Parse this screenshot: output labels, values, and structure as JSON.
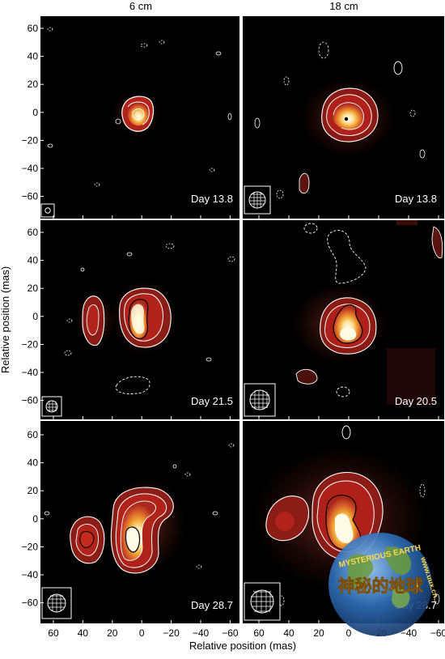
{
  "columns": [
    "6 cm",
    "18 cm"
  ],
  "y_axis_label": "Relative position (mas)",
  "x_axis_label": "Relative position (mas)",
  "y_ticks": [
    "60",
    "40",
    "20",
    "0",
    "−20",
    "−40",
    "−60"
  ],
  "x_ticks": [
    "60",
    "40",
    "20",
    "0",
    "−20",
    "−40",
    "−60"
  ],
  "panels": [
    {
      "row": 0,
      "col": 0,
      "day": "Day 13.8"
    },
    {
      "row": 0,
      "col": 1,
      "day": "Day 13.8"
    },
    {
      "row": 1,
      "col": 0,
      "day": "Day 21.5"
    },
    {
      "row": 1,
      "col": 1,
      "day": "Day 20.5"
    },
    {
      "row": 2,
      "col": 0,
      "day": "Day 28.7"
    },
    {
      "row": 2,
      "col": 1,
      "day": "Day 28.7"
    }
  ],
  "watermark": {
    "text_top": "MYSTERIOUS EARTH",
    "text_main": "神秘的地球",
    "text_url": "www.uux.cn"
  },
  "colors": {
    "background": "#000000",
    "glow": "#7a1a12",
    "mid": "#c0392b",
    "hot": "#f39c12",
    "core": "#fffbe6",
    "contour": "#ffffff"
  }
}
